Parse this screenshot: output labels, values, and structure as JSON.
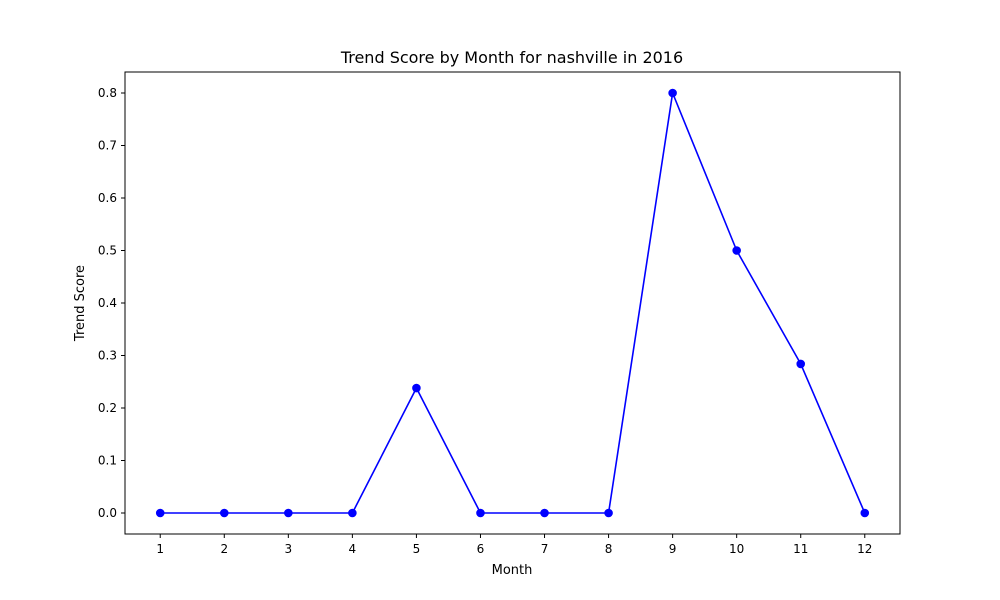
{
  "chart_data": {
    "type": "line",
    "title": "Trend Score by Month for nashville in 2016",
    "xlabel": "Month",
    "ylabel": "Trend Score",
    "x": [
      1,
      2,
      3,
      4,
      5,
      6,
      7,
      8,
      9,
      10,
      11,
      12
    ],
    "series": [
      {
        "values": [
          0,
          0,
          0,
          0,
          0.238,
          0,
          0,
          0,
          0.8,
          0.5,
          0.284,
          0
        ],
        "color": "#0000ff",
        "marker": "circle"
      }
    ],
    "xticks": [
      "1",
      "2",
      "3",
      "4",
      "5",
      "6",
      "7",
      "8",
      "9",
      "10",
      "11",
      "12"
    ],
    "yticks": [
      "0.0",
      "0.1",
      "0.2",
      "0.3",
      "0.4",
      "0.5",
      "0.6",
      "0.7",
      "0.8"
    ],
    "xlim": [
      0.45,
      12.55
    ],
    "ylim": [
      -0.04,
      0.84
    ],
    "grid": false,
    "legend": false
  }
}
